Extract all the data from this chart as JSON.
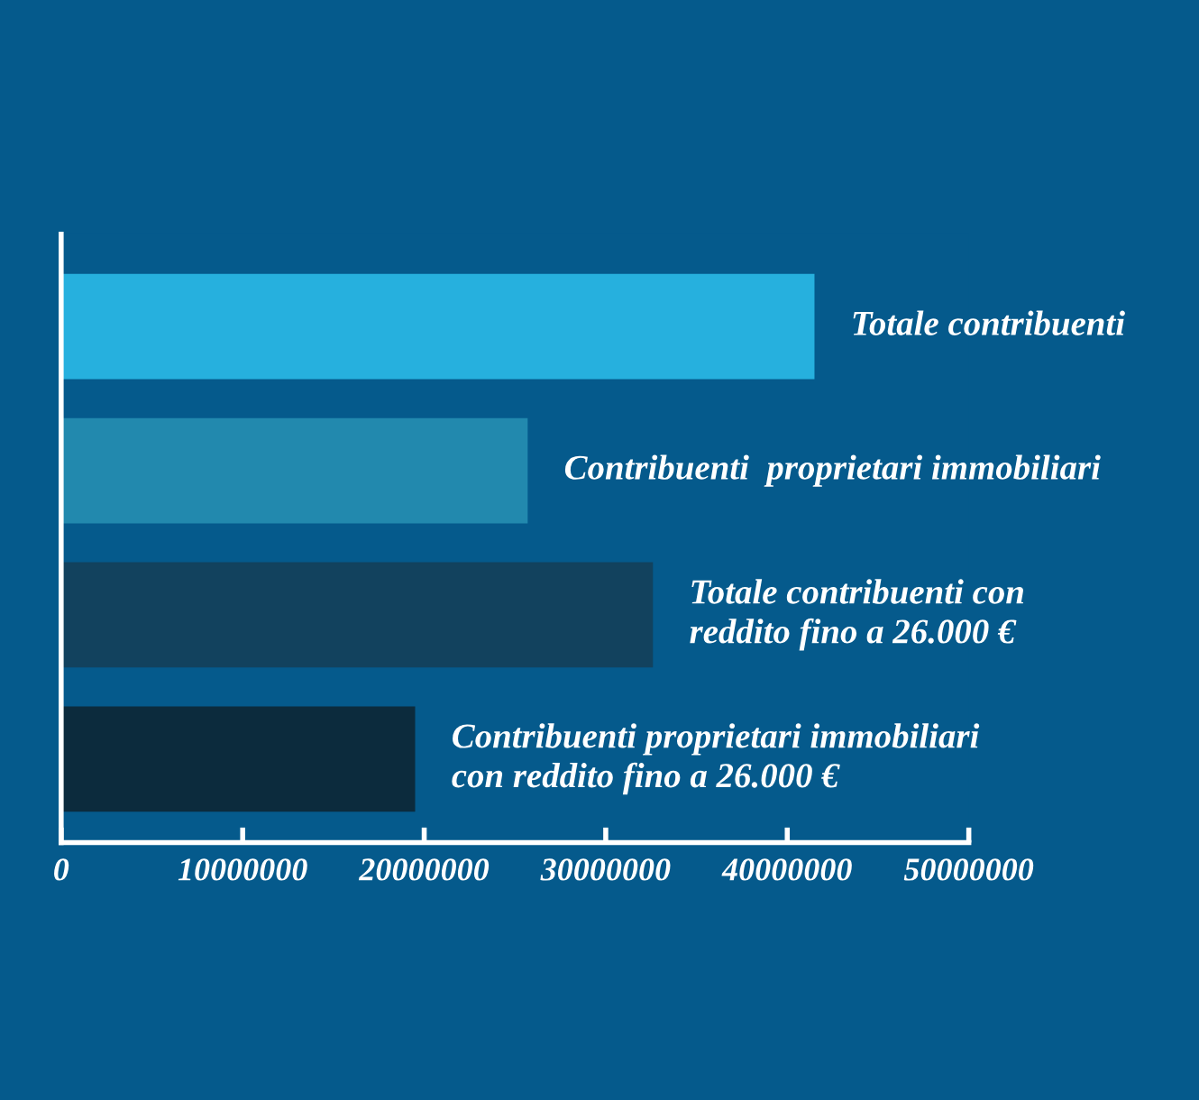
{
  "chart_data": {
    "type": "bar",
    "orientation": "horizontal",
    "categories": [
      "Totale contribuenti",
      "Contribuenti  proprietari immobiliari",
      "Totale contribuenti con\nreddito fino a 26.000 €",
      "Contribuenti proprietari immobiliari\ncon reddito fino a 26.000 €"
    ],
    "values": [
      41500000,
      25700000,
      32600000,
      19500000
    ],
    "colors": [
      "#26b0de",
      "#2289ae",
      "#12425e",
      "#0c2b3d"
    ],
    "xlim": [
      0,
      50000000
    ],
    "xticks": [
      0,
      10000000,
      20000000,
      30000000,
      40000000,
      50000000
    ],
    "grid": false,
    "legend": false
  }
}
